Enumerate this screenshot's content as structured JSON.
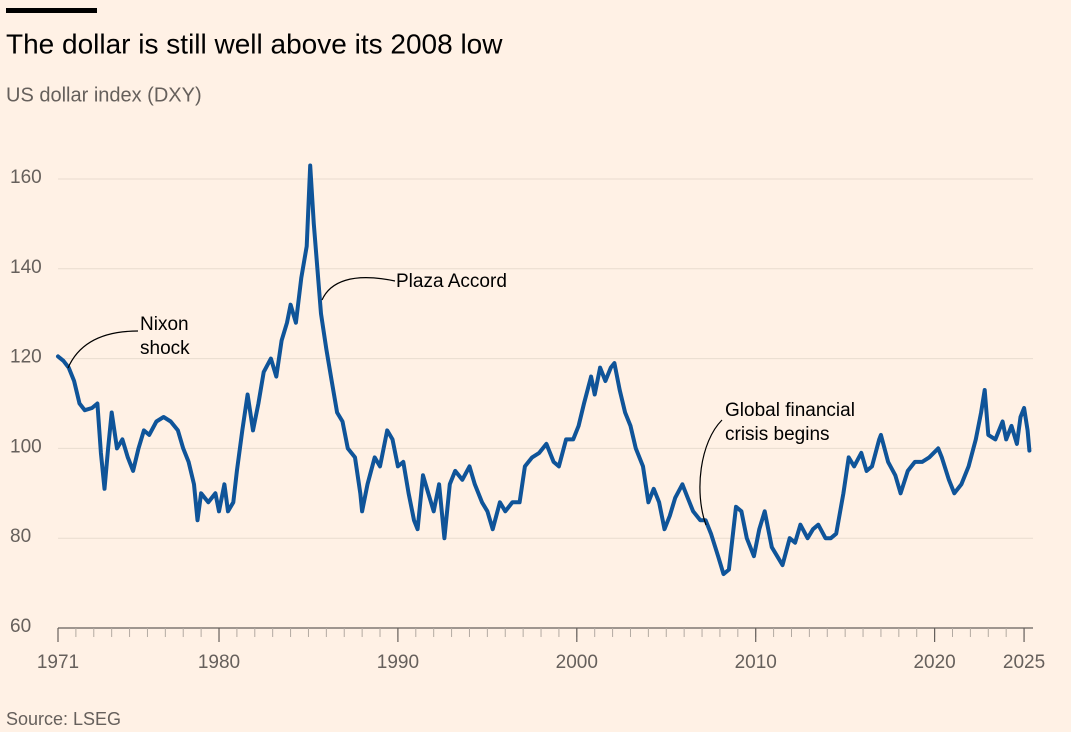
{
  "chart_data": {
    "type": "line",
    "title": "The dollar is still well above its 2008 low",
    "subtitle": "US dollar index (DXY)",
    "source": "Source: LSEG",
    "annotations": [
      {
        "lines": [
          "Nixon",
          "shock"
        ]
      },
      {
        "lines": [
          "Plaza Accord"
        ]
      },
      {
        "lines": [
          "Global financial",
          "crisis begins"
        ]
      }
    ],
    "xlim": [
      1971,
      2025.5
    ],
    "xticks": [
      1971,
      1980,
      1990,
      2000,
      2010,
      2020,
      2025
    ],
    "xminorticks": [
      1971,
      1972,
      1973,
      1974,
      1975,
      1976,
      1977,
      1978,
      1979,
      1980,
      1981,
      1982,
      1983,
      1984,
      1985,
      1986,
      1987,
      1988,
      1989,
      1990,
      1991,
      1992,
      1993,
      1994,
      1995,
      1996,
      1997,
      1998,
      1999,
      2000,
      2001,
      2002,
      2003,
      2004,
      2005,
      2006,
      2007,
      2008,
      2009,
      2010,
      2011,
      2012,
      2013,
      2014,
      2015,
      2016,
      2017,
      2018,
      2019,
      2020,
      2021,
      2022,
      2023,
      2024,
      2025
    ],
    "ylim": [
      60,
      167
    ],
    "yticks": [
      60,
      80,
      100,
      120,
      140,
      160
    ],
    "grid": true,
    "series": [
      {
        "name": "US dollar index (DXY)",
        "color": "#0f5499",
        "x": [
          1971.0,
          1971.3,
          1971.6,
          1971.9,
          1972.2,
          1972.5,
          1972.9,
          1973.2,
          1973.4,
          1973.6,
          1973.8,
          1974.0,
          1974.3,
          1974.6,
          1974.9,
          1975.2,
          1975.5,
          1975.8,
          1976.1,
          1976.5,
          1976.9,
          1977.3,
          1977.7,
          1978.0,
          1978.3,
          1978.6,
          1978.8,
          1979.0,
          1979.4,
          1979.8,
          1980.0,
          1980.3,
          1980.5,
          1980.8,
          1981.0,
          1981.3,
          1981.6,
          1981.9,
          1982.2,
          1982.5,
          1982.9,
          1983.2,
          1983.5,
          1983.8,
          1984.0,
          1984.3,
          1984.6,
          1984.9,
          1985.1,
          1985.3,
          1985.5,
          1985.7,
          1986.0,
          1986.3,
          1986.6,
          1986.9,
          1987.2,
          1987.6,
          1987.9,
          1988.0,
          1988.3,
          1988.7,
          1989.0,
          1989.4,
          1989.7,
          1990.0,
          1990.3,
          1990.6,
          1990.9,
          1991.1,
          1991.4,
          1991.7,
          1992.0,
          1992.3,
          1992.6,
          1992.9,
          1993.2,
          1993.6,
          1994.0,
          1994.3,
          1994.7,
          1995.0,
          1995.3,
          1995.7,
          1996.0,
          1996.4,
          1996.8,
          1997.1,
          1997.5,
          1997.9,
          1998.3,
          1998.7,
          1999.0,
          1999.4,
          1999.8,
          2000.1,
          2000.4,
          2000.8,
          2001.0,
          2001.3,
          2001.6,
          2001.9,
          2002.1,
          2002.4,
          2002.7,
          2003.0,
          2003.3,
          2003.7,
          2004.0,
          2004.3,
          2004.6,
          2004.9,
          2005.2,
          2005.5,
          2005.9,
          2006.2,
          2006.5,
          2006.9,
          2007.2,
          2007.5,
          2007.9,
          2008.2,
          2008.5,
          2008.9,
          2009.2,
          2009.5,
          2009.9,
          2010.2,
          2010.5,
          2010.9,
          2011.2,
          2011.5,
          2011.9,
          2012.2,
          2012.5,
          2012.9,
          2013.2,
          2013.5,
          2013.9,
          2014.2,
          2014.5,
          2014.9,
          2015.2,
          2015.5,
          2015.9,
          2016.2,
          2016.5,
          2016.9,
          2017.0,
          2017.4,
          2017.8,
          2018.1,
          2018.5,
          2018.9,
          2019.3,
          2019.7,
          2020.2,
          2020.4,
          2020.8,
          2021.1,
          2021.5,
          2021.9,
          2022.3,
          2022.6,
          2022.8,
          2023.0,
          2023.4,
          2023.8,
          2024.0,
          2024.3,
          2024.6,
          2024.8,
          2025.0,
          2025.2,
          2025.3
        ],
        "values": [
          120.5,
          119.5,
          118,
          115,
          110,
          108.5,
          109,
          110,
          99,
          91,
          100,
          108,
          100,
          102,
          98,
          95,
          100,
          104,
          103,
          106,
          107,
          106,
          104,
          100,
          97,
          92,
          84,
          90,
          88,
          90,
          86,
          92,
          86,
          88,
          95,
          104,
          112,
          104,
          110,
          117,
          120,
          116,
          124,
          128,
          132,
          128,
          138,
          145,
          163,
          150,
          140,
          130,
          122,
          115,
          108,
          106,
          100,
          98,
          90,
          86,
          92,
          98,
          96,
          104,
          102,
          96,
          97,
          90,
          84,
          82,
          94,
          90,
          86,
          92,
          80,
          92,
          95,
          93,
          96,
          92,
          88,
          86,
          82,
          88,
          86,
          88,
          88,
          96,
          98,
          99,
          101,
          97,
          96,
          102,
          102,
          105,
          110,
          116,
          112,
          118,
          115,
          118,
          119,
          113,
          108,
          105,
          100,
          96,
          88,
          91,
          88,
          82,
          85,
          89,
          92,
          89,
          86,
          84,
          84,
          81,
          76,
          72,
          73,
          87,
          86,
          80,
          76,
          82,
          86,
          78,
          76,
          74,
          80,
          79,
          83,
          80,
          82,
          83,
          80,
          80,
          81,
          90,
          98,
          96,
          99,
          95,
          96,
          102,
          103,
          97,
          94,
          90,
          95,
          97,
          97,
          98,
          100,
          98,
          93,
          90,
          92,
          96,
          102,
          108,
          113,
          103,
          102,
          106,
          102,
          105,
          101,
          107,
          109,
          104,
          99.5
        ]
      }
    ]
  }
}
